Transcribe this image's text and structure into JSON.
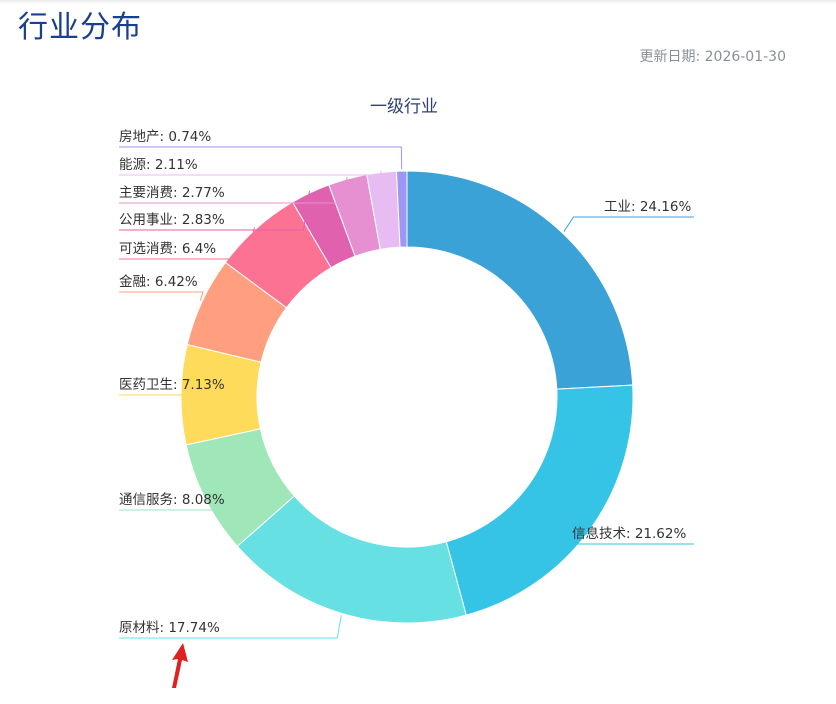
{
  "page": {
    "title": "行业分布",
    "update_label": "更新日期:",
    "update_date": "2026-01-30"
  },
  "chart_data": {
    "type": "pie",
    "donut": true,
    "title": "一级行业",
    "slices": [
      {
        "name": "工业",
        "value": 24.16,
        "label": "工业: 24.16%",
        "color": "#3ba2d8"
      },
      {
        "name": "信息技术",
        "value": 21.62,
        "label": "信息技术: 21.62%",
        "color": "#36c4e6"
      },
      {
        "name": "原材料",
        "value": 17.74,
        "label": "原材料: 17.74%",
        "color": "#67e0e3"
      },
      {
        "name": "通信服务",
        "value": 8.08,
        "label": "通信服务: 8.08%",
        "color": "#9fe6b8"
      },
      {
        "name": "医药卫生",
        "value": 7.13,
        "label": "医药卫生: 7.13%",
        "color": "#ffdb5c"
      },
      {
        "name": "金融",
        "value": 6.42,
        "label": "金融: 6.42%",
        "color": "#ff9f7f"
      },
      {
        "name": "可选消费",
        "value": 6.4,
        "label": "可选消费: 6.4%",
        "color": "#fb7293"
      },
      {
        "name": "公用事业",
        "value": 2.83,
        "label": "公用事业: 2.83%",
        "color": "#e062ae"
      },
      {
        "name": "主要消费",
        "value": 2.77,
        "label": "主要消费: 2.77%",
        "color": "#e690d1"
      },
      {
        "name": "能源",
        "value": 2.11,
        "label": "能源: 2.11%",
        "color": "#e7bcf3"
      },
      {
        "name": "房地产",
        "value": 0.74,
        "label": "房地产: 0.74%",
        "color": "#9d96f5"
      }
    ]
  },
  "annotation": {
    "arrow_color": "#e02020"
  }
}
